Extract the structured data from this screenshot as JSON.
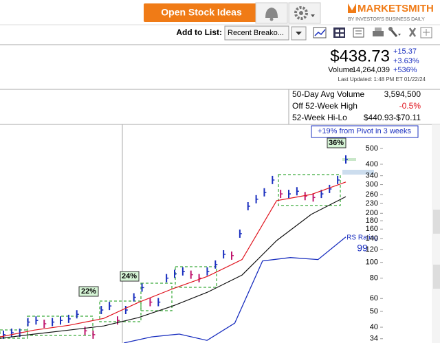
{
  "toolbar": {
    "button": "Open Stock Ideas",
    "logo": "MARKETSMITH",
    "logo_sub": "BY INVESTOR'S BUSINESS DAILY"
  },
  "list_bar": {
    "label": "Add to List:",
    "select": "Recent Breako..."
  },
  "quote": {
    "price": "$438.73",
    "change": "+15.37",
    "change_pct": "+3.63%",
    "gain": "+536%",
    "volume_label": "Volume",
    "volume": "14,264,039",
    "updated": "Last Updated: 1:48 PM ET 01/22/24"
  },
  "stats": {
    "rows": [
      [
        "50-Day Avg Volume",
        "3,594,500"
      ],
      [
        "Off 52-Week High",
        "-0.5%"
      ],
      [
        "52-Week Hi-Lo",
        "$440.93-$70.11"
      ]
    ]
  },
  "chart": {
    "log": true,
    "ylim": [
      32,
      702
    ],
    "yticks": [
      500,
      400,
      340,
      300,
      260,
      230,
      200,
      180,
      160,
      140,
      120,
      100,
      80,
      60,
      50,
      40,
      34
    ],
    "series": [
      {
        "name": "price",
        "color": "#1a2fbf",
        "down_color": "#c0166e",
        "values": [
          36,
          37,
          37,
          43,
          44,
          42,
          43,
          44,
          45,
          48,
          38,
          36,
          51,
          54,
          44,
          51,
          61,
          70,
          57,
          57,
          80,
          85,
          88,
          84,
          80,
          88,
          97,
          112,
          110,
          150,
          221,
          244,
          269,
          320,
          263,
          263,
          273,
          255,
          250,
          263,
          282,
          320,
          428
        ]
      },
      {
        "name": "50-day",
        "color": "#e0141e",
        "values": [
          34.9,
          38.4,
          41.1,
          45.3,
          56.7,
          68.9,
          82,
          104,
          239,
          261,
          311
        ]
      },
      {
        "name": "200-day",
        "color": "#111111",
        "values": [
          34.2,
          36.3,
          38.4,
          40.7,
          45.8,
          54,
          65.6,
          83.6,
          136,
          197,
          253
        ]
      },
      {
        "name": "rs",
        "color": "#1a2fbf",
        "values": [
          32,
          34.9,
          36.3,
          33.2,
          42.4,
          102,
          107,
          104,
          143
        ]
      }
    ]
  },
  "annotations": {
    "pivot": "+19% from Pivot in 3 weeks",
    "gains": [
      "36%",
      "24%",
      "22%"
    ],
    "rs_label": "RS Rating",
    "rs_rating": 99
  }
}
